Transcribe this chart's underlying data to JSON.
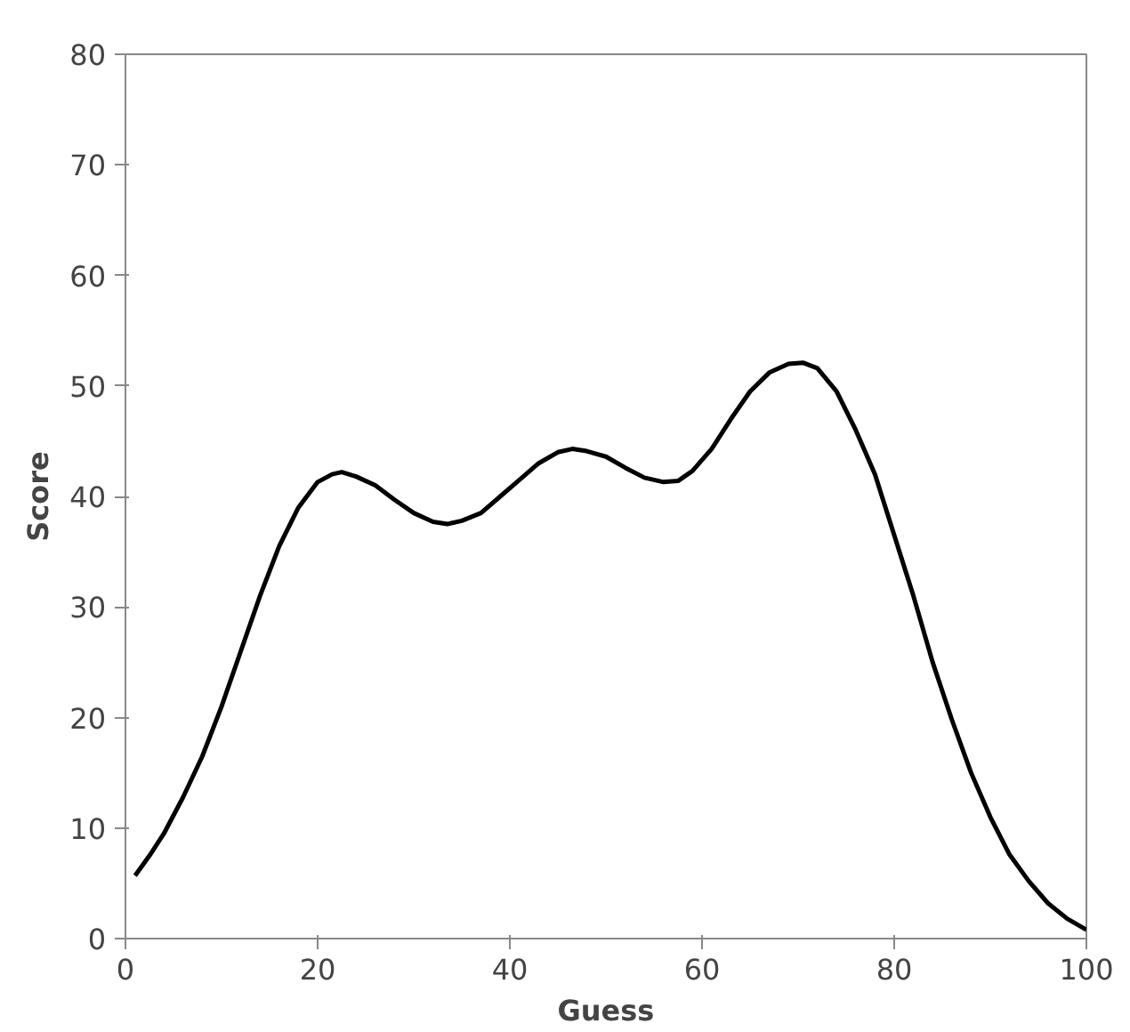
{
  "chart_data": {
    "type": "line",
    "xlabel": "Guess",
    "ylabel": "Score",
    "x": [
      1,
      2.5,
      4,
      6,
      8,
      10,
      12,
      14,
      16,
      18,
      20,
      21.5,
      22.5,
      24,
      26,
      28,
      30,
      32,
      33.5,
      35,
      37,
      39,
      41,
      43,
      45,
      46.5,
      48,
      50,
      52,
      54,
      56,
      57.5,
      59,
      61,
      63,
      65,
      67,
      69,
      70.5,
      72,
      74,
      76,
      78,
      80,
      82,
      84,
      86,
      88,
      90,
      92,
      94,
      96,
      98,
      100
    ],
    "series": [
      {
        "color": "#000000",
        "values": [
          5.7,
          7.5,
          9.5,
          12.8,
          16.5,
          21,
          26,
          31,
          35.5,
          39,
          41.3,
          42,
          42.2,
          41.8,
          41,
          39.7,
          38.5,
          37.7,
          37.5,
          37.8,
          38.5,
          40,
          41.5,
          43,
          44,
          44.3,
          44.1,
          43.6,
          42.6,
          41.7,
          41.3,
          41.4,
          42.3,
          44.3,
          47,
          49.5,
          51.2,
          52,
          52.1,
          51.6,
          49.5,
          46,
          42,
          36.5,
          31,
          25,
          19.8,
          15,
          11,
          7.6,
          5.2,
          3.2,
          1.8,
          0.8
        ]
      }
    ],
    "xlim": [
      0,
      100
    ],
    "ylim": [
      0,
      80
    ],
    "xticks": [
      0,
      20,
      40,
      60,
      80,
      100
    ],
    "yticks": [
      0,
      10,
      20,
      30,
      40,
      50,
      60,
      70,
      80
    ],
    "marker": "none",
    "line_style": "solid"
  }
}
